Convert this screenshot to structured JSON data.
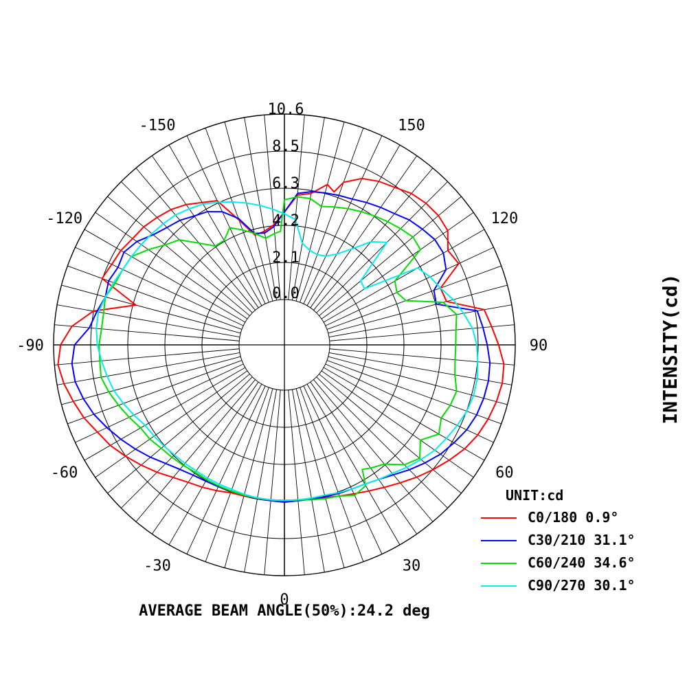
{
  "chart_data": {
    "type": "polar",
    "unit_label": "UNIT:cd",
    "ylabel": "INTENSITY(cd)",
    "footer": "AVERAGE BEAM ANGLE(50%):24.2 deg",
    "r_max": 10.6,
    "ring_labels": [
      "0.0",
      "2.1",
      "4.2",
      "6.3",
      "8.5",
      "10.6"
    ],
    "angle_labels": [
      {
        "angle": 0,
        "text": "0"
      },
      {
        "angle": 30,
        "text": "30"
      },
      {
        "angle": 60,
        "text": "60"
      },
      {
        "angle": 90,
        "text": "90"
      },
      {
        "angle": 120,
        "text": "120"
      },
      {
        "angle": 150,
        "text": "150"
      },
      {
        "angle": 180,
        "text": "10.6"
      },
      {
        "angle": -30,
        "text": "-30"
      },
      {
        "angle": -60,
        "text": "-60"
      },
      {
        "angle": -90,
        "text": "-90"
      },
      {
        "angle": -120,
        "text": "-120"
      },
      {
        "angle": -150,
        "text": "-150"
      }
    ],
    "grid": true,
    "spokes_every_deg": 5,
    "legend_position": "bottom-right",
    "series": [
      {
        "name": "C0/180 0.9°",
        "color": "#ff0000",
        "points": [
          [
            0,
            6.3
          ],
          [
            5,
            6.3
          ],
          [
            10,
            6.35
          ],
          [
            15,
            6.45
          ],
          [
            20,
            6.6
          ],
          [
            25,
            6.8
          ],
          [
            30,
            7.05
          ],
          [
            35,
            7.35
          ],
          [
            40,
            7.7
          ],
          [
            45,
            8.1
          ],
          [
            50,
            8.5
          ],
          [
            55,
            8.9
          ],
          [
            60,
            9.3
          ],
          [
            65,
            9.6
          ],
          [
            70,
            9.8
          ],
          [
            75,
            9.95
          ],
          [
            80,
            10.05
          ],
          [
            85,
            10.0
          ],
          [
            90,
            9.65
          ],
          [
            95,
            9.3
          ],
          [
            100,
            9.0
          ],
          [
            105,
            7.0
          ],
          [
            110,
            6.9
          ],
          [
            115,
            8.4
          ],
          [
            120,
            8.2
          ],
          [
            125,
            8.8
          ],
          [
            130,
            8.9
          ],
          [
            135,
            8.85
          ],
          [
            140,
            8.7
          ],
          [
            145,
            8.4
          ],
          [
            150,
            8.2
          ],
          [
            155,
            7.9
          ],
          [
            160,
            7.3
          ],
          [
            162,
            6.6
          ],
          [
            165,
            6.9
          ],
          [
            170,
            6.2
          ],
          [
            175,
            6.0
          ],
          [
            180,
            5.0
          ],
          [
            -180,
            5.0
          ],
          [
            -175,
            4.3
          ],
          [
            -170,
            4.0
          ],
          [
            -165,
            3.9
          ],
          [
            -160,
            5.0
          ],
          [
            -155,
            6.5
          ],
          [
            -150,
            6.8
          ],
          [
            -145,
            7.2
          ],
          [
            -140,
            7.5
          ],
          [
            -135,
            7.7
          ],
          [
            -130,
            7.9
          ],
          [
            -125,
            8.0
          ],
          [
            -120,
            8.2
          ],
          [
            -115,
            8.3
          ],
          [
            -110,
            8.5
          ],
          [
            -105,
            6.2
          ],
          [
            -100,
            8.5
          ],
          [
            -95,
            9.6
          ],
          [
            -90,
            10.2
          ],
          [
            -85,
            10.4
          ],
          [
            -80,
            10.2
          ],
          [
            -75,
            9.9
          ],
          [
            -70,
            9.6
          ],
          [
            -65,
            9.2
          ],
          [
            -60,
            8.9
          ],
          [
            -55,
            8.5
          ],
          [
            -50,
            8.1
          ],
          [
            -45,
            7.7
          ],
          [
            -40,
            7.3
          ],
          [
            -35,
            7.0
          ],
          [
            -30,
            6.8
          ],
          [
            -25,
            6.6
          ],
          [
            -20,
            6.4
          ],
          [
            -15,
            6.35
          ],
          [
            -10,
            6.3
          ],
          [
            -5,
            6.3
          ],
          [
            0,
            6.3
          ]
        ]
      },
      {
        "name": "C30/210 31.1°",
        "color": "#0000ff",
        "points": [
          [
            0,
            6.4
          ],
          [
            5,
            6.35
          ],
          [
            10,
            6.35
          ],
          [
            15,
            6.4
          ],
          [
            20,
            6.45
          ],
          [
            25,
            6.5
          ],
          [
            30,
            6.6
          ],
          [
            35,
            6.8
          ],
          [
            40,
            7.1
          ],
          [
            45,
            7.5
          ],
          [
            50,
            7.9
          ],
          [
            55,
            8.3
          ],
          [
            60,
            8.6
          ],
          [
            65,
            8.9
          ],
          [
            70,
            9.1
          ],
          [
            75,
            9.2
          ],
          [
            80,
            9.25
          ],
          [
            85,
            9.2
          ],
          [
            90,
            9.0
          ],
          [
            95,
            8.8
          ],
          [
            100,
            8.6
          ],
          [
            105,
            6.4
          ],
          [
            110,
            6.5
          ],
          [
            115,
            7.6
          ],
          [
            120,
            7.9
          ],
          [
            125,
            7.9
          ],
          [
            130,
            7.7
          ],
          [
            135,
            7.5
          ],
          [
            140,
            7.2
          ],
          [
            145,
            7.0
          ],
          [
            150,
            6.8
          ],
          [
            155,
            6.6
          ],
          [
            160,
            6.5
          ],
          [
            165,
            6.4
          ],
          [
            170,
            6.3
          ],
          [
            175,
            6.1
          ],
          [
            180,
            5.0
          ],
          [
            -180,
            5.0
          ],
          [
            -175,
            4.2
          ],
          [
            -170,
            3.9
          ],
          [
            -165,
            4.0
          ],
          [
            -160,
            5.1
          ],
          [
            -155,
            5.8
          ],
          [
            -150,
            6.2
          ],
          [
            -145,
            6.4
          ],
          [
            -140,
            6.7
          ],
          [
            -135,
            6.9
          ],
          [
            -130,
            7.2
          ],
          [
            -125,
            7.7
          ],
          [
            -120,
            8.0
          ],
          [
            -115,
            7.9
          ],
          [
            -110,
            8.1
          ],
          [
            -105,
            8.0
          ],
          [
            -100,
            8.3
          ],
          [
            -95,
            8.6
          ],
          [
            -90,
            9.4
          ],
          [
            -85,
            9.6
          ],
          [
            -80,
            9.55
          ],
          [
            -75,
            9.3
          ],
          [
            -70,
            9.0
          ],
          [
            -65,
            8.6
          ],
          [
            -60,
            8.2
          ],
          [
            -55,
            7.8
          ],
          [
            -50,
            7.4
          ],
          [
            -45,
            7.0
          ],
          [
            -40,
            6.7
          ],
          [
            -35,
            6.5
          ],
          [
            -30,
            6.4
          ],
          [
            -25,
            6.35
          ],
          [
            -20,
            6.3
          ],
          [
            -15,
            6.3
          ],
          [
            -10,
            6.3
          ],
          [
            -5,
            6.35
          ],
          [
            0,
            6.4
          ]
        ]
      },
      {
        "name": "C60/240 34.6°",
        "color": "#00dd00",
        "points": [
          [
            0,
            6.3
          ],
          [
            5,
            6.3
          ],
          [
            10,
            6.4
          ],
          [
            15,
            6.5
          ],
          [
            20,
            6.6
          ],
          [
            25,
            6.9
          ],
          [
            30,
            6.7
          ],
          [
            32,
            5.8
          ],
          [
            35,
            6.0
          ],
          [
            40,
            6.3
          ],
          [
            45,
            7.1
          ],
          [
            50,
            7.5
          ],
          [
            55,
            6.9
          ],
          [
            60,
            7.6
          ],
          [
            65,
            7.3
          ],
          [
            70,
            7.5
          ],
          [
            75,
            7.6
          ],
          [
            80,
            7.3
          ],
          [
            85,
            7.2
          ],
          [
            90,
            7.2
          ],
          [
            95,
            7.25
          ],
          [
            100,
            7.4
          ],
          [
            105,
            6.8
          ],
          [
            110,
            4.8
          ],
          [
            115,
            4.5
          ],
          [
            120,
            4.7
          ],
          [
            125,
            6.9
          ],
          [
            130,
            7.0
          ],
          [
            135,
            6.8
          ],
          [
            140,
            6.6
          ],
          [
            145,
            6.4
          ],
          [
            150,
            6.2
          ],
          [
            155,
            6.0
          ],
          [
            160,
            5.8
          ],
          [
            165,
            5.6
          ],
          [
            170,
            5.9
          ],
          [
            175,
            5.9
          ],
          [
            180,
            5.7
          ],
          [
            -180,
            5.7
          ],
          [
            -178,
            3.9
          ],
          [
            -175,
            3.8
          ],
          [
            -170,
            3.6
          ],
          [
            -165,
            4.0
          ],
          [
            -160,
            4.4
          ],
          [
            -155,
            4.8
          ],
          [
            -150,
            4.3
          ],
          [
            -145,
            4.3
          ],
          [
            -140,
            5.0
          ],
          [
            -135,
            5.9
          ],
          [
            -130,
            6.3
          ],
          [
            -125,
            6.9
          ],
          [
            -120,
            7.5
          ],
          [
            -115,
            7.6
          ],
          [
            -110,
            7.7
          ],
          [
            -105,
            8.0
          ],
          [
            -100,
            7.9
          ],
          [
            -95,
            7.9
          ],
          [
            -90,
            8.0
          ],
          [
            -85,
            8.0
          ],
          [
            -80,
            8.05
          ],
          [
            -75,
            7.8
          ],
          [
            -70,
            7.5
          ],
          [
            -65,
            7.2
          ],
          [
            -60,
            6.9
          ],
          [
            -55,
            6.8
          ],
          [
            -50,
            6.6
          ],
          [
            -45,
            6.5
          ],
          [
            -40,
            6.4
          ],
          [
            -35,
            6.3
          ],
          [
            -30,
            6.3
          ],
          [
            -25,
            6.3
          ],
          [
            -20,
            6.3
          ],
          [
            -15,
            6.3
          ],
          [
            -10,
            6.3
          ],
          [
            -5,
            6.3
          ],
          [
            0,
            6.3
          ]
        ]
      },
      {
        "name": "C90/270 30.1°",
        "color": "#00eeee",
        "points": [
          [
            0,
            6.3
          ],
          [
            5,
            6.3
          ],
          [
            10,
            6.3
          ],
          [
            15,
            6.3
          ],
          [
            20,
            6.4
          ],
          [
            25,
            6.5
          ],
          [
            30,
            6.6
          ],
          [
            35,
            6.8
          ],
          [
            40,
            7.0
          ],
          [
            45,
            7.3
          ],
          [
            50,
            7.6
          ],
          [
            55,
            7.9
          ],
          [
            60,
            8.1
          ],
          [
            65,
            8.3
          ],
          [
            70,
            8.5
          ],
          [
            75,
            8.6
          ],
          [
            80,
            8.6
          ],
          [
            85,
            8.5
          ],
          [
            90,
            8.4
          ],
          [
            95,
            8.2
          ],
          [
            100,
            7.8
          ],
          [
            105,
            7.4
          ],
          [
            110,
            6.9
          ],
          [
            115,
            6.6
          ],
          [
            120,
            6.2
          ],
          [
            125,
            3.0
          ],
          [
            130,
            3.1
          ],
          [
            135,
            5.7
          ],
          [
            140,
            5.1
          ],
          [
            145,
            4.1
          ],
          [
            150,
            3.4
          ],
          [
            155,
            3.0
          ],
          [
            160,
            2.9
          ],
          [
            165,
            3.0
          ],
          [
            170,
            3.3
          ],
          [
            175,
            4.6
          ],
          [
            180,
            4.9
          ],
          [
            -180,
            4.9
          ],
          [
            -175,
            5.2
          ],
          [
            -170,
            5.5
          ],
          [
            -165,
            5.8
          ],
          [
            -160,
            6.1
          ],
          [
            -155,
            6.4
          ],
          [
            -150,
            6.7
          ],
          [
            -145,
            6.9
          ],
          [
            -140,
            7.1
          ],
          [
            -135,
            7.2
          ],
          [
            -130,
            7.3
          ],
          [
            -125,
            7.4
          ],
          [
            -120,
            7.5
          ],
          [
            -115,
            7.6
          ],
          [
            -110,
            7.8
          ],
          [
            -105,
            8.0
          ],
          [
            -100,
            8.2
          ],
          [
            -95,
            8.2
          ],
          [
            -90,
            8.1
          ],
          [
            -85,
            7.9
          ],
          [
            -80,
            7.7
          ],
          [
            -75,
            7.5
          ],
          [
            -70,
            7.2
          ],
          [
            -65,
            6.9
          ],
          [
            -60,
            6.6
          ],
          [
            -55,
            6.5
          ],
          [
            -50,
            6.4
          ],
          [
            -45,
            6.3
          ],
          [
            -40,
            6.25
          ],
          [
            -35,
            6.2
          ],
          [
            -30,
            6.2
          ],
          [
            -25,
            6.2
          ],
          [
            -20,
            6.2
          ],
          [
            -15,
            6.25
          ],
          [
            -10,
            6.3
          ],
          [
            -5,
            6.3
          ],
          [
            0,
            6.3
          ]
        ]
      }
    ]
  }
}
